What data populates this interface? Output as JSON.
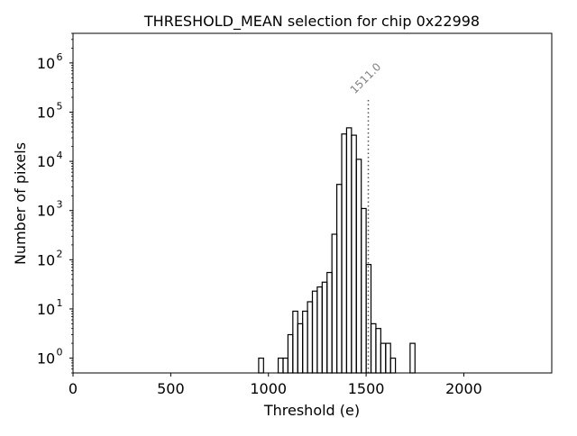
{
  "chart_data": {
    "type": "histogram",
    "title": "THRESHOLD_MEAN selection for chip 0x22998",
    "xlabel": "Threshold (e)",
    "ylabel": "Number of pixels",
    "xlim": [
      0,
      2450
    ],
    "ylim": [
      0.5,
      4000000
    ],
    "yscale": "log",
    "x_ticks": [
      {
        "value": 0,
        "label": "0"
      },
      {
        "value": 500,
        "label": "500"
      },
      {
        "value": 1000,
        "label": "1000"
      },
      {
        "value": 1500,
        "label": "1500"
      },
      {
        "value": 2000,
        "label": "2000"
      }
    ],
    "y_ticks": [
      {
        "value": 1,
        "label": "10",
        "exp": "0"
      },
      {
        "value": 10,
        "label": "10",
        "exp": "1"
      },
      {
        "value": 100,
        "label": "10",
        "exp": "2"
      },
      {
        "value": 1000,
        "label": "10",
        "exp": "3"
      },
      {
        "value": 10000,
        "label": "10",
        "exp": "4"
      },
      {
        "value": 100000,
        "label": "10",
        "exp": "5"
      },
      {
        "value": 1000000,
        "label": "10",
        "exp": "6"
      }
    ],
    "bin_width": 25,
    "bins": [
      {
        "start": 950,
        "count": 1
      },
      {
        "start": 975,
        "count": 0
      },
      {
        "start": 1000,
        "count": 0
      },
      {
        "start": 1025,
        "count": 0
      },
      {
        "start": 1050,
        "count": 1
      },
      {
        "start": 1075,
        "count": 1
      },
      {
        "start": 1100,
        "count": 3
      },
      {
        "start": 1125,
        "count": 9
      },
      {
        "start": 1150,
        "count": 5
      },
      {
        "start": 1175,
        "count": 9
      },
      {
        "start": 1200,
        "count": 14
      },
      {
        "start": 1225,
        "count": 23
      },
      {
        "start": 1250,
        "count": 28
      },
      {
        "start": 1275,
        "count": 35
      },
      {
        "start": 1300,
        "count": 55
      },
      {
        "start": 1325,
        "count": 330
      },
      {
        "start": 1350,
        "count": 3400
      },
      {
        "start": 1375,
        "count": 36000
      },
      {
        "start": 1400,
        "count": 48000
      },
      {
        "start": 1425,
        "count": 34000
      },
      {
        "start": 1450,
        "count": 11000
      },
      {
        "start": 1475,
        "count": 1100
      },
      {
        "start": 1500,
        "count": 80
      },
      {
        "start": 1525,
        "count": 5
      },
      {
        "start": 1550,
        "count": 4
      },
      {
        "start": 1575,
        "count": 2
      },
      {
        "start": 1600,
        "count": 2
      },
      {
        "start": 1625,
        "count": 1
      },
      {
        "start": 1650,
        "count": 0
      },
      {
        "start": 1675,
        "count": 0
      },
      {
        "start": 1700,
        "count": 0
      },
      {
        "start": 1725,
        "count": 2
      },
      {
        "start": 1750,
        "count": 0
      }
    ],
    "selection": {
      "value": 1511.0,
      "label": "1511.0",
      "y_top": 180000
    }
  }
}
